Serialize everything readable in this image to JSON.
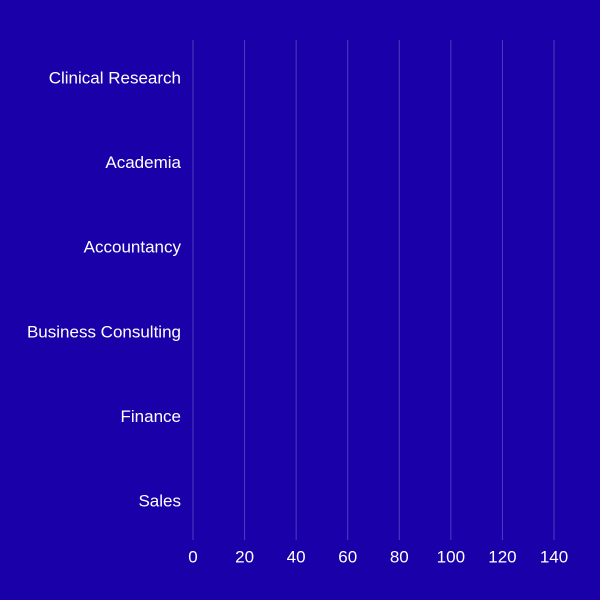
{
  "chart_data": {
    "type": "bar",
    "orientation": "horizontal",
    "categories": [
      "Clinical Research",
      "Academia",
      "Accountancy",
      "Business Consulting",
      "Finance",
      "Sales"
    ],
    "values": [
      0,
      0,
      0,
      0,
      0,
      0
    ],
    "xticks": [
      0,
      20,
      40,
      60,
      80,
      100,
      120,
      140
    ],
    "xlim": [
      0,
      140
    ],
    "grid": "vertical",
    "colors": {
      "background": "#1a00a8",
      "text": "#ffffff",
      "grid": "#4a3fc2"
    }
  }
}
